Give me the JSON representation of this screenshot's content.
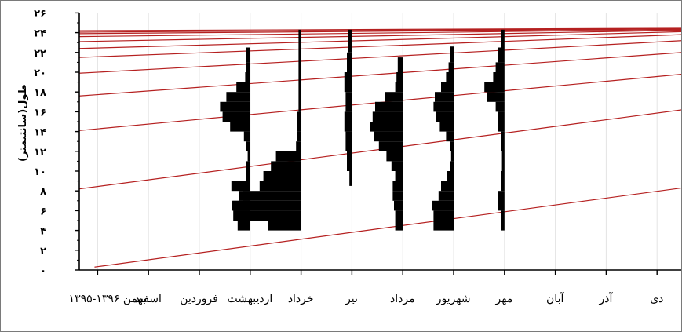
{
  "chart_data": {
    "type": "length-frequency growth plot",
    "ylabel": "طول(سانتیمتر)",
    "ylim": [
      0,
      26
    ],
    "y_ticks": [
      "۰",
      "۲",
      "۴",
      "۶",
      "۸",
      "۱۰",
      "۱۲",
      "۱۴",
      "۱۶",
      "۱۸",
      "۲۰",
      "۲۲",
      "۲۴",
      "۲۶"
    ],
    "x_labels": [
      "بهمن ۱۳۹۶-۱۳۹۵",
      "اسفند",
      "فروردین",
      "اردیبهشت",
      "خرداد",
      "تیر",
      "مرداد",
      "شهریور",
      "مهر",
      "آبان",
      "آذر",
      "دی"
    ],
    "grid": "vertical, light gray",
    "colors": {
      "growth_curve": "#b52020",
      "histogram": "#000000",
      "axis": "#000000",
      "grid": "#e4e4e4"
    },
    "growth_curves": [
      {
        "cohort": 1,
        "start_month": 0.3,
        "start_length": 0.3,
        "end_length": 8.3
      },
      {
        "cohort": 2,
        "start_month": 0,
        "start_length": 8.2,
        "end_length": 16.2
      },
      {
        "cohort": 3,
        "start_month": 0,
        "start_length": 14.1,
        "end_length": 19.8
      },
      {
        "cohort": 4,
        "start_month": 0,
        "start_length": 17.6,
        "end_length": 22.0
      },
      {
        "cohort": 5,
        "start_month": 0,
        "start_length": 19.9,
        "end_length": 23.2
      },
      {
        "cohort": 6,
        "start_month": 0,
        "start_length": 21.5,
        "end_length": 23.8
      },
      {
        "cohort": 7,
        "start_month": 0,
        "start_length": 22.4,
        "end_length": 24.1
      },
      {
        "cohort": 8,
        "start_month": 0,
        "start_length": 23.1,
        "end_length": 24.25
      },
      {
        "cohort": 9,
        "start_month": 0,
        "start_length": 23.6,
        "end_length": 24.32
      },
      {
        "cohort": 10,
        "start_month": 0,
        "start_length": 23.9,
        "end_length": 24.38
      },
      {
        "cohort": 11,
        "start_month": 0,
        "start_length": 24.05,
        "end_length": 24.42
      },
      {
        "cohort": 12,
        "start_month": 0,
        "start_length": 24.2,
        "end_length": 24.45
      }
    ],
    "samples": [
      {
        "month": "اردیبهشت",
        "bins": [
          {
            "y0": 4,
            "y1": 5,
            "w": 1.0
          },
          {
            "y0": 5,
            "y1": 6,
            "w": 1.1
          },
          {
            "y0": 6,
            "y1": 7,
            "w": 1.4
          },
          {
            "y0": 7,
            "y1": 8,
            "w": 0.9
          },
          {
            "y0": 8,
            "y1": 9,
            "w": 1.5
          },
          {
            "y0": 9,
            "y1": 10,
            "w": 0.3
          },
          {
            "y0": 10,
            "y1": 11,
            "w": 0.3
          },
          {
            "y0": 11,
            "y1": 12,
            "w": 0.2
          },
          {
            "y0": 12,
            "y1": 13,
            "w": 0.3
          },
          {
            "y0": 13,
            "y1": 14,
            "w": 0.5
          },
          {
            "y0": 14,
            "y1": 15,
            "w": 1.6
          },
          {
            "y0": 15,
            "y1": 16,
            "w": 2.2
          },
          {
            "y0": 16,
            "y1": 17,
            "w": 2.4
          },
          {
            "y0": 17,
            "y1": 18,
            "w": 1.9
          },
          {
            "y0": 18,
            "y1": 19,
            "w": 1.1
          },
          {
            "y0": 19,
            "y1": 20,
            "w": 0.4
          },
          {
            "y0": 20,
            "y1": 21,
            "w": 0.3
          },
          {
            "y0": 21,
            "y1": 22.5,
            "w": 0.3
          }
        ]
      },
      {
        "month": "خرداد",
        "bins": [
          {
            "y0": 4,
            "y1": 5,
            "w": 2.6
          },
          {
            "y0": 5,
            "y1": 6,
            "w": 5.4
          },
          {
            "y0": 6,
            "y1": 7,
            "w": 5.5
          },
          {
            "y0": 7,
            "y1": 8,
            "w": 4.6
          },
          {
            "y0": 8,
            "y1": 9,
            "w": 3.3
          },
          {
            "y0": 9,
            "y1": 10,
            "w": 3.0
          },
          {
            "y0": 10,
            "y1": 11,
            "w": 2.4
          },
          {
            "y0": 11,
            "y1": 12,
            "w": 2.0
          },
          {
            "y0": 12,
            "y1": 13,
            "w": 0.4
          },
          {
            "y0": 13,
            "y1": 14,
            "w": 0.3
          },
          {
            "y0": 14,
            "y1": 15,
            "w": 0.3
          },
          {
            "y0": 15,
            "y1": 16,
            "w": 0.3
          },
          {
            "y0": 16,
            "y1": 20,
            "w": 0.2
          },
          {
            "y0": 20,
            "y1": 24.3,
            "w": 0.2
          }
        ]
      },
      {
        "month": "تیر",
        "bins": [
          {
            "y0": 8.5,
            "y1": 10,
            "w": 0.2
          },
          {
            "y0": 10,
            "y1": 12,
            "w": 0.4
          },
          {
            "y0": 12,
            "y1": 14,
            "w": 0.5
          },
          {
            "y0": 14,
            "y1": 16,
            "w": 0.6
          },
          {
            "y0": 16,
            "y1": 18,
            "w": 0.5
          },
          {
            "y0": 18,
            "y1": 20,
            "w": 0.6
          },
          {
            "y0": 20,
            "y1": 22,
            "w": 0.4
          },
          {
            "y0": 22,
            "y1": 24.3,
            "w": 0.3
          }
        ]
      },
      {
        "month": "مرداد",
        "bins": [
          {
            "y0": 4,
            "y1": 5,
            "w": 0.6
          },
          {
            "y0": 5,
            "y1": 6,
            "w": 0.6
          },
          {
            "y0": 6,
            "y1": 7,
            "w": 0.7
          },
          {
            "y0": 7,
            "y1": 8,
            "w": 0.8
          },
          {
            "y0": 8,
            "y1": 9,
            "w": 0.8
          },
          {
            "y0": 9,
            "y1": 10,
            "w": 0.6
          },
          {
            "y0": 10,
            "y1": 11,
            "w": 0.9
          },
          {
            "y0": 11,
            "y1": 12,
            "w": 1.3
          },
          {
            "y0": 12,
            "y1": 13,
            "w": 1.9
          },
          {
            "y0": 13,
            "y1": 14,
            "w": 2.3
          },
          {
            "y0": 14,
            "y1": 15,
            "w": 2.6
          },
          {
            "y0": 15,
            "y1": 16,
            "w": 2.4
          },
          {
            "y0": 16,
            "y1": 17,
            "w": 2.2
          },
          {
            "y0": 17,
            "y1": 18,
            "w": 1.4
          },
          {
            "y0": 18,
            "y1": 19,
            "w": 0.6
          },
          {
            "y0": 19,
            "y1": 20,
            "w": 0.5
          },
          {
            "y0": 20,
            "y1": 21.5,
            "w": 0.4
          }
        ]
      },
      {
        "month": "شهریور",
        "bins": [
          {
            "y0": 4,
            "y1": 5,
            "w": 1.6
          },
          {
            "y0": 5,
            "y1": 6,
            "w": 1.6
          },
          {
            "y0": 6,
            "y1": 7,
            "w": 1.7
          },
          {
            "y0": 7,
            "y1": 8,
            "w": 1.2
          },
          {
            "y0": 8,
            "y1": 9,
            "w": 1.0
          },
          {
            "y0": 9,
            "y1": 10,
            "w": 0.5
          },
          {
            "y0": 10,
            "y1": 11,
            "w": 0.3
          },
          {
            "y0": 11,
            "y1": 12,
            "w": 0.2
          },
          {
            "y0": 12,
            "y1": 13,
            "w": 0.3
          },
          {
            "y0": 13,
            "y1": 14,
            "w": 0.6
          },
          {
            "y0": 14,
            "y1": 15,
            "w": 1.1
          },
          {
            "y0": 15,
            "y1": 16,
            "w": 1.4
          },
          {
            "y0": 16,
            "y1": 17,
            "w": 1.6
          },
          {
            "y0": 17,
            "y1": 18,
            "w": 1.5
          },
          {
            "y0": 18,
            "y1": 19,
            "w": 1.0
          },
          {
            "y0": 19,
            "y1": 20,
            "w": 0.6
          },
          {
            "y0": 20,
            "y1": 21,
            "w": 0.4
          },
          {
            "y0": 21,
            "y1": 22.6,
            "w": 0.3
          }
        ]
      },
      {
        "month": "مهر",
        "bins": [
          {
            "y0": 4,
            "y1": 6,
            "w": 0.3
          },
          {
            "y0": 6,
            "y1": 8,
            "w": 0.5
          },
          {
            "y0": 8,
            "y1": 10,
            "w": 0.3
          },
          {
            "y0": 10,
            "y1": 12,
            "w": 0.2
          },
          {
            "y0": 12,
            "y1": 14,
            "w": 0.3
          },
          {
            "y0": 14,
            "y1": 16,
            "w": 0.5
          },
          {
            "y0": 16,
            "y1": 17,
            "w": 0.7
          },
          {
            "y0": 17,
            "y1": 18,
            "w": 1.4
          },
          {
            "y0": 18,
            "y1": 19,
            "w": 1.6
          },
          {
            "y0": 19,
            "y1": 20,
            "w": 0.9
          },
          {
            "y0": 20,
            "y1": 21,
            "w": 0.7
          },
          {
            "y0": 21,
            "y1": 22.5,
            "w": 0.5
          },
          {
            "y0": 22.5,
            "y1": 24.3,
            "w": 0.3
          }
        ]
      }
    ]
  }
}
